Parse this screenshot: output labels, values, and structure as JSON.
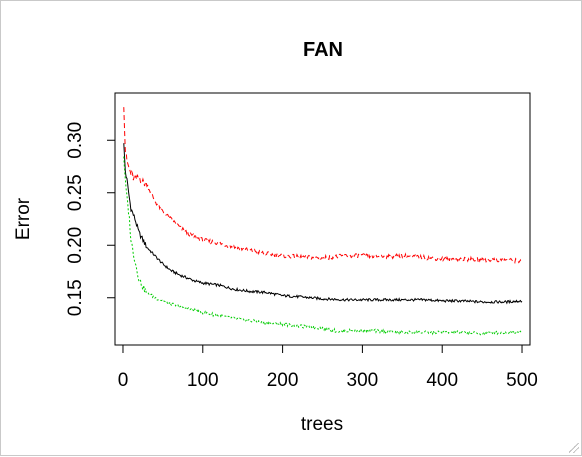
{
  "chart_data": {
    "type": "line",
    "title": "FAN",
    "xlabel": "trees",
    "ylabel": "Error",
    "xlim": [
      -10,
      510
    ],
    "ylim": [
      0.105,
      0.345
    ],
    "xticks": [
      0,
      100,
      200,
      300,
      400,
      500
    ],
    "yticks": [
      0.15,
      0.2,
      0.25,
      0.3
    ],
    "xtick_labels": [
      "0",
      "100",
      "200",
      "300",
      "400",
      "500"
    ],
    "ytick_labels": [
      "0.15",
      "0.20",
      "0.25",
      "0.30"
    ],
    "grid": false,
    "legend": "none",
    "series": [
      {
        "color": "#000000",
        "dash": "solid",
        "points": [
          [
            1,
            0.296
          ],
          [
            3,
            0.27
          ],
          [
            5,
            0.262
          ],
          [
            8,
            0.245
          ],
          [
            10,
            0.235
          ],
          [
            15,
            0.225
          ],
          [
            20,
            0.212
          ],
          [
            25,
            0.205
          ],
          [
            30,
            0.198
          ],
          [
            40,
            0.19
          ],
          [
            50,
            0.182
          ],
          [
            60,
            0.176
          ],
          [
            70,
            0.172
          ],
          [
            80,
            0.169
          ],
          [
            90,
            0.166
          ],
          [
            100,
            0.164
          ],
          [
            120,
            0.162
          ],
          [
            140,
            0.158
          ],
          [
            160,
            0.156
          ],
          [
            180,
            0.155
          ],
          [
            200,
            0.152
          ],
          [
            220,
            0.151
          ],
          [
            250,
            0.149
          ],
          [
            280,
            0.148
          ],
          [
            300,
            0.148
          ],
          [
            330,
            0.148
          ],
          [
            350,
            0.148
          ],
          [
            380,
            0.148
          ],
          [
            400,
            0.147
          ],
          [
            420,
            0.147
          ],
          [
            450,
            0.146
          ],
          [
            480,
            0.146
          ],
          [
            500,
            0.147
          ]
        ]
      },
      {
        "color": "#ff0000",
        "dash": "dashed",
        "points": [
          [
            1,
            0.335
          ],
          [
            2,
            0.31
          ],
          [
            3,
            0.29
          ],
          [
            5,
            0.28
          ],
          [
            8,
            0.272
          ],
          [
            10,
            0.268
          ],
          [
            15,
            0.262
          ],
          [
            20,
            0.265
          ],
          [
            25,
            0.26
          ],
          [
            30,
            0.258
          ],
          [
            35,
            0.25
          ],
          [
            40,
            0.242
          ],
          [
            50,
            0.232
          ],
          [
            60,
            0.225
          ],
          [
            70,
            0.218
          ],
          [
            80,
            0.212
          ],
          [
            90,
            0.208
          ],
          [
            100,
            0.205
          ],
          [
            120,
            0.202
          ],
          [
            140,
            0.198
          ],
          [
            160,
            0.195
          ],
          [
            180,
            0.192
          ],
          [
            200,
            0.19
          ],
          [
            220,
            0.189
          ],
          [
            250,
            0.188
          ],
          [
            280,
            0.19
          ],
          [
            300,
            0.19
          ],
          [
            330,
            0.189
          ],
          [
            350,
            0.19
          ],
          [
            380,
            0.188
          ],
          [
            400,
            0.187
          ],
          [
            420,
            0.187
          ],
          [
            450,
            0.186
          ],
          [
            480,
            0.186
          ],
          [
            500,
            0.185
          ]
        ]
      },
      {
        "color": "#00cc00",
        "dash": "dotted",
        "points": [
          [
            1,
            0.285
          ],
          [
            3,
            0.26
          ],
          [
            5,
            0.245
          ],
          [
            8,
            0.225
          ],
          [
            10,
            0.205
          ],
          [
            15,
            0.185
          ],
          [
            20,
            0.168
          ],
          [
            25,
            0.16
          ],
          [
            30,
            0.155
          ],
          [
            40,
            0.15
          ],
          [
            50,
            0.147
          ],
          [
            60,
            0.144
          ],
          [
            70,
            0.142
          ],
          [
            80,
            0.14
          ],
          [
            90,
            0.138
          ],
          [
            100,
            0.136
          ],
          [
            120,
            0.133
          ],
          [
            140,
            0.13
          ],
          [
            160,
            0.128
          ],
          [
            180,
            0.126
          ],
          [
            200,
            0.125
          ],
          [
            220,
            0.123
          ],
          [
            250,
            0.121
          ],
          [
            270,
            0.118
          ],
          [
            300,
            0.119
          ],
          [
            330,
            0.118
          ],
          [
            350,
            0.117
          ],
          [
            380,
            0.117
          ],
          [
            400,
            0.117
          ],
          [
            420,
            0.117
          ],
          [
            450,
            0.116
          ],
          [
            480,
            0.117
          ],
          [
            500,
            0.118
          ]
        ]
      }
    ]
  }
}
